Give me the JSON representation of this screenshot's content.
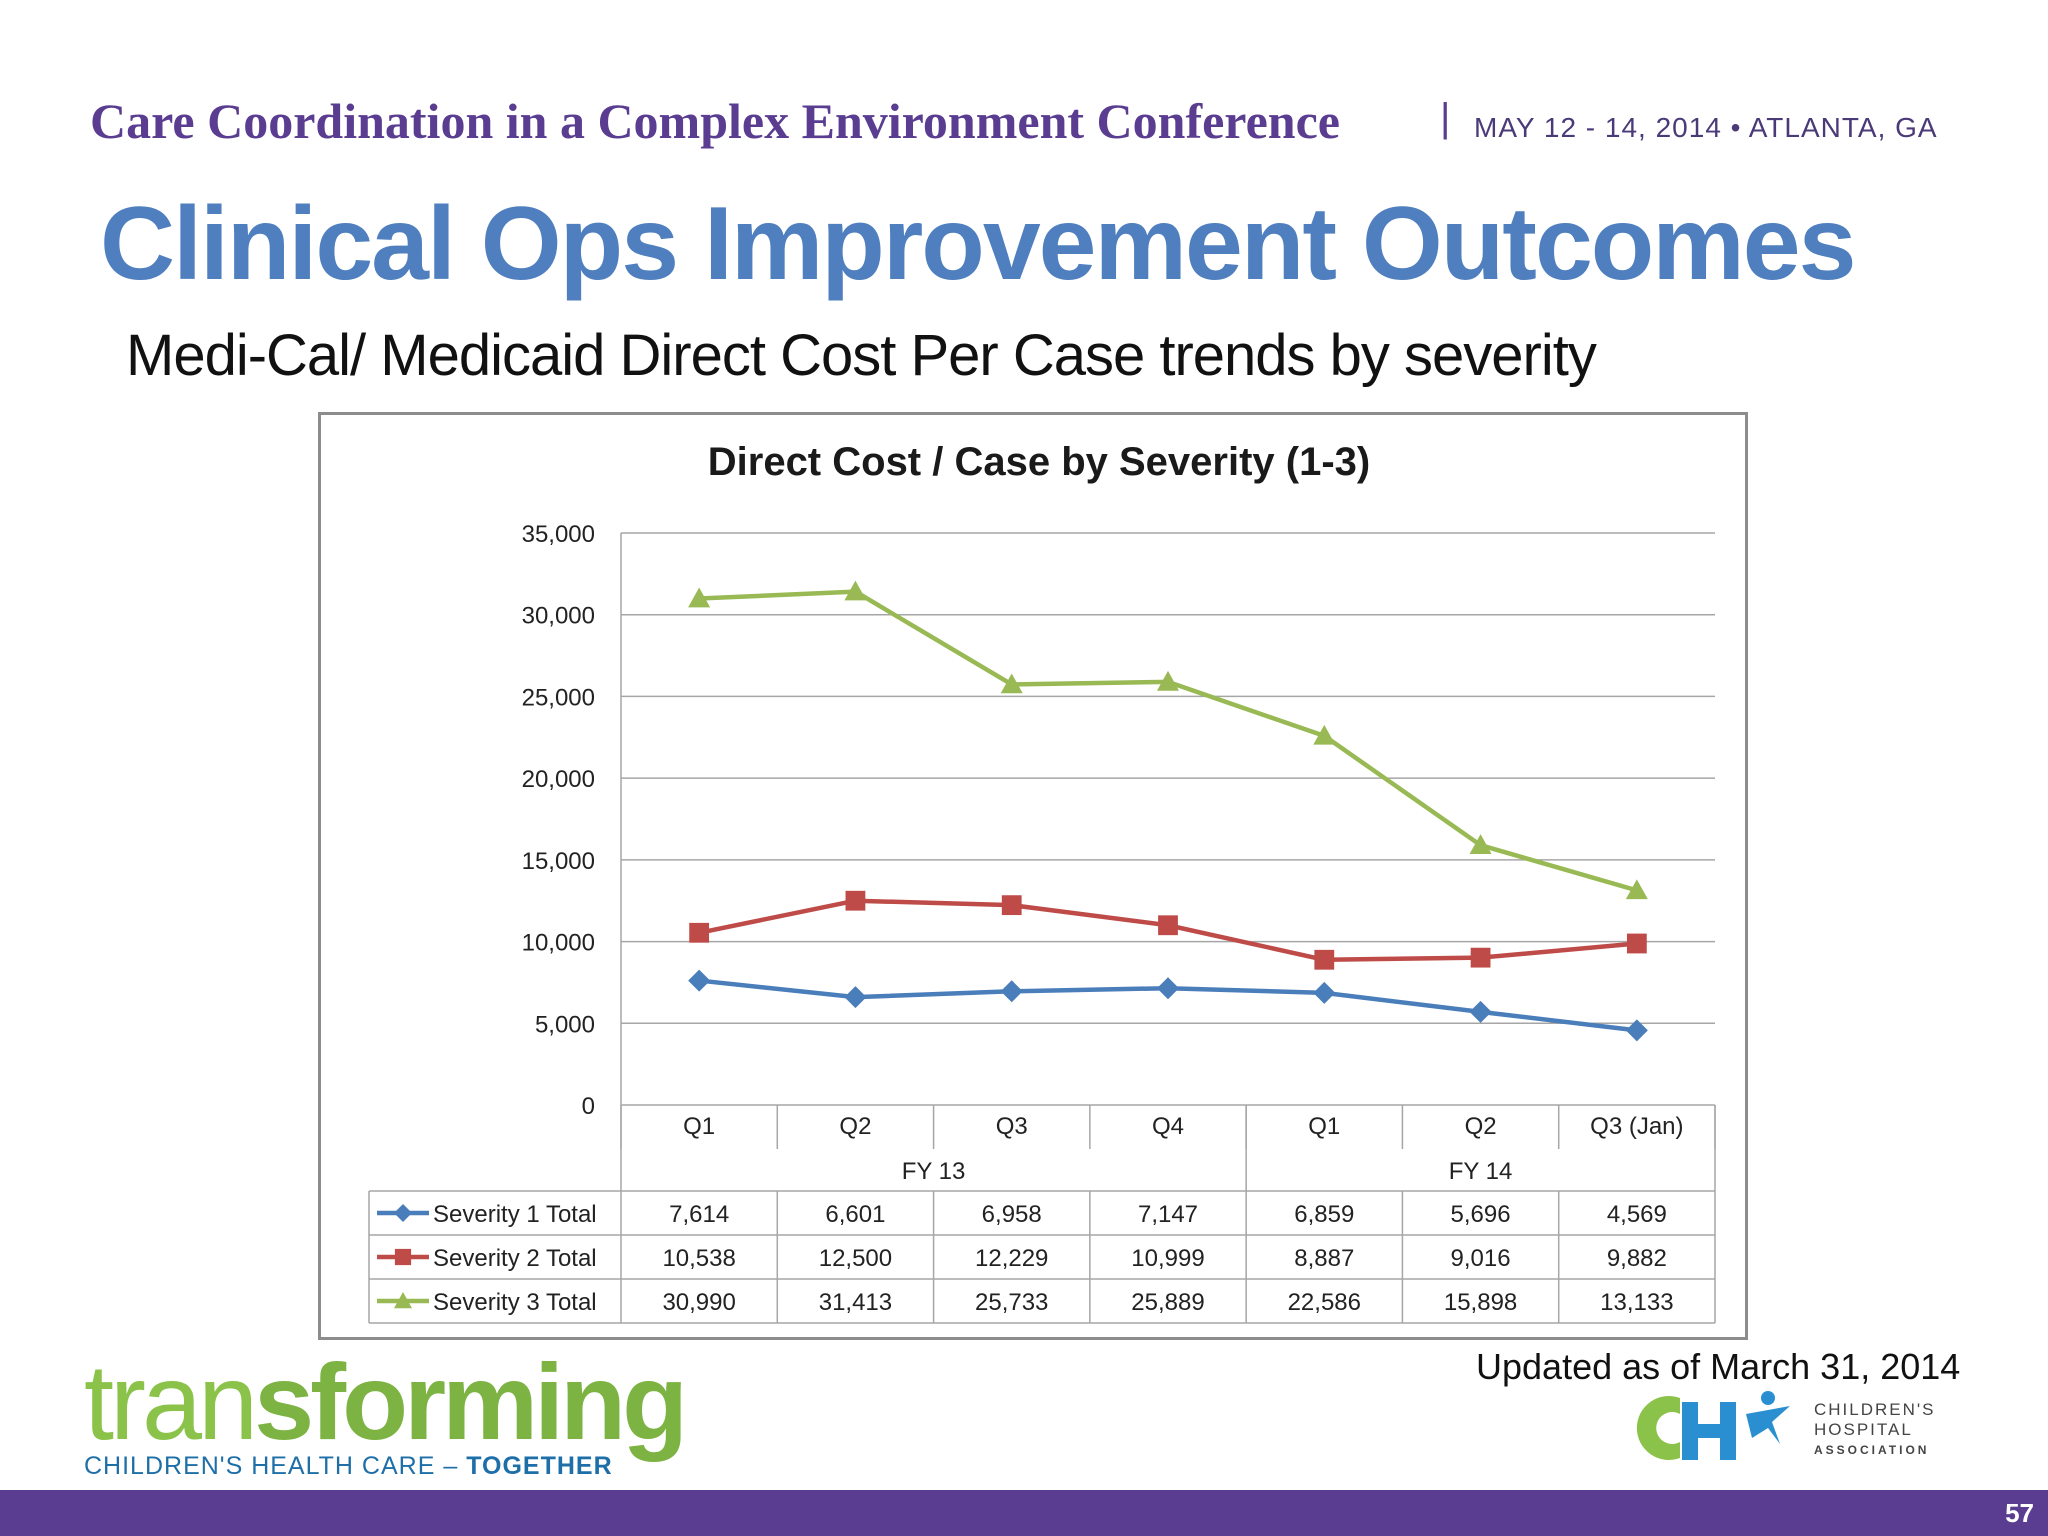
{
  "header": {
    "conference": "Care Coordination in a Complex Environment Conference",
    "separator": "|",
    "date_location": "MAY 12 - 14, 2014  •  ATLANTA, GA"
  },
  "slide": {
    "title": "Clinical Ops Improvement Outcomes",
    "subtitle": "Medi-Cal/ Medicaid Direct Cost Per Case trends by severity",
    "updated": "Updated as of  March 31, 2014",
    "page_number": "57"
  },
  "logos": {
    "left_word_light": "tran",
    "left_word_bold": "sforming",
    "left_tagline": "CHILDREN'S HEALTH CARE –",
    "left_tagline_bold": "TOGETHER",
    "right_lines": [
      "CHILDREN'S",
      "HOSPITAL",
      "ASSOCIATION"
    ]
  },
  "colors": {
    "conference": "#5a3d91",
    "title": "#4f7fbf",
    "severity1": "#4a7ebb",
    "severity2": "#be4b48",
    "severity3": "#98b954",
    "footer": "#5a3d91"
  },
  "chart_data": {
    "type": "line",
    "title": "Direct Cost / Case by Severity (1-3)",
    "categories": [
      "Q1",
      "Q2",
      "Q3",
      "Q4",
      "Q1",
      "Q2",
      "Q3 (Jan)"
    ],
    "groups": [
      {
        "label": "FY 13",
        "count": 4
      },
      {
        "label": "FY 14",
        "count": 3
      }
    ],
    "ylim": [
      0,
      35000
    ],
    "yticks": [
      "0",
      "5,000",
      "10,000",
      "15,000",
      "20,000",
      "25,000",
      "30,000",
      "35,000"
    ],
    "ytick_values": [
      0,
      5000,
      10000,
      15000,
      20000,
      25000,
      30000,
      35000
    ],
    "grid": true,
    "legend": "data-table",
    "series": [
      {
        "name": "Severity 1 Total",
        "values": [
          7614,
          6601,
          6958,
          7147,
          6859,
          5696,
          4569
        ],
        "labels": [
          "7,614",
          "6,601",
          "6,958",
          "7,147",
          "6,859",
          "5,696",
          "4,569"
        ],
        "marker": "diamond",
        "color": "#4a7ebb"
      },
      {
        "name": "Severity 2 Total",
        "values": [
          10538,
          12500,
          12229,
          10999,
          8887,
          9016,
          9882
        ],
        "labels": [
          "10,538",
          "12,500",
          "12,229",
          "10,999",
          "8,887",
          "9,016",
          "9,882"
        ],
        "marker": "square",
        "color": "#be4b48"
      },
      {
        "name": "Severity 3 Total",
        "values": [
          30990,
          31413,
          25733,
          25889,
          22586,
          15898,
          13133
        ],
        "labels": [
          "30,990",
          "31,413",
          "25,733",
          "25,889",
          "22,586",
          "15,898",
          "13,133"
        ],
        "marker": "triangle",
        "color": "#98b954"
      }
    ]
  }
}
